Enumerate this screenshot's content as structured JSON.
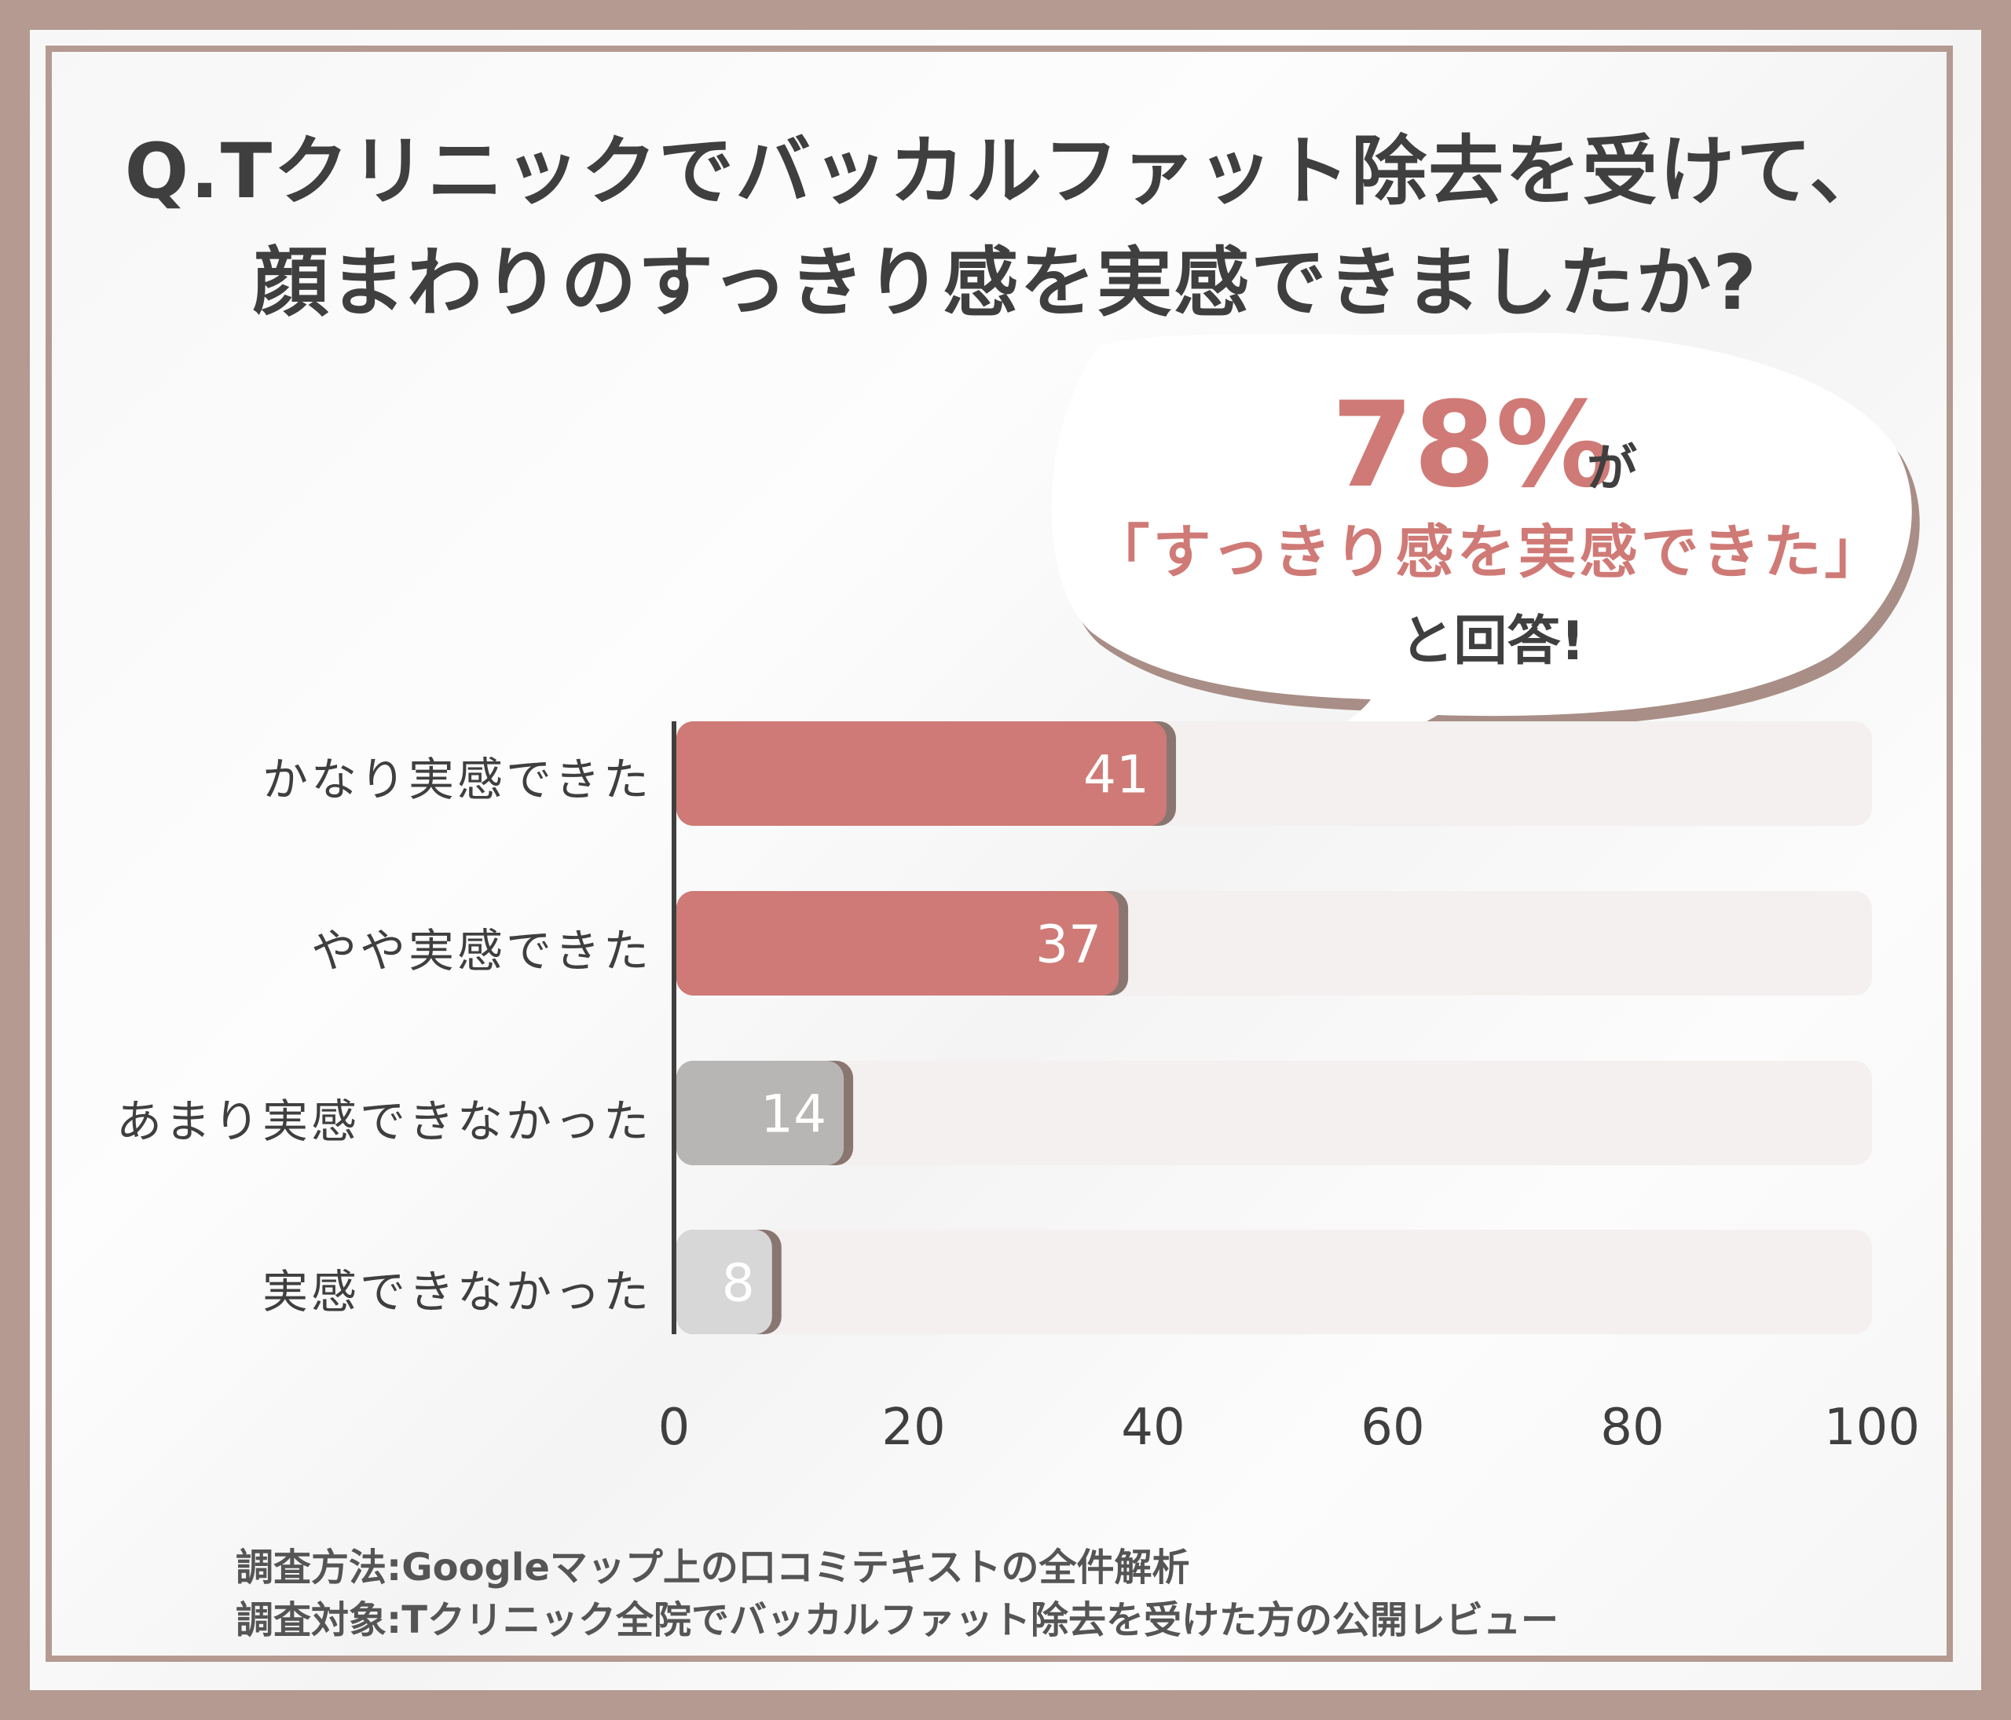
{
  "title": {
    "line1": "Q.Tクリニックでバッカルファット除去を受けて、",
    "line2": "顔まわりのすっきり感を実感できましたか?"
  },
  "callout": {
    "percent": "78%",
    "suffix": "が",
    "quote": "「すっきり感を実感できた」",
    "answer": "と回答!"
  },
  "chart_data": {
    "type": "bar",
    "orientation": "horizontal",
    "categories": [
      "かなり実感できた",
      "やや実感できた",
      "あまり実感できなかった",
      "実感できなかった"
    ],
    "values": [
      41,
      37,
      14,
      8
    ],
    "value_labels": [
      "41",
      "37",
      "14",
      "8"
    ],
    "xlim": [
      0,
      100
    ],
    "xticks": [
      "0",
      "20",
      "40",
      "60",
      "80",
      "100"
    ],
    "xtick_values": [
      0,
      20,
      40,
      60,
      80,
      100
    ],
    "colors": [
      "#cf7a76",
      "#cf7a76",
      "#b8b6b5",
      "#d8d7d7"
    ],
    "track_color": "#f3f0ef"
  },
  "notes": {
    "method": "調査方法:Googleマップ上の口コミテキストの全件解析",
    "target": "調査対象:Tクリニック全院でバッカルファット除去を受けた方の公開レビュー"
  }
}
